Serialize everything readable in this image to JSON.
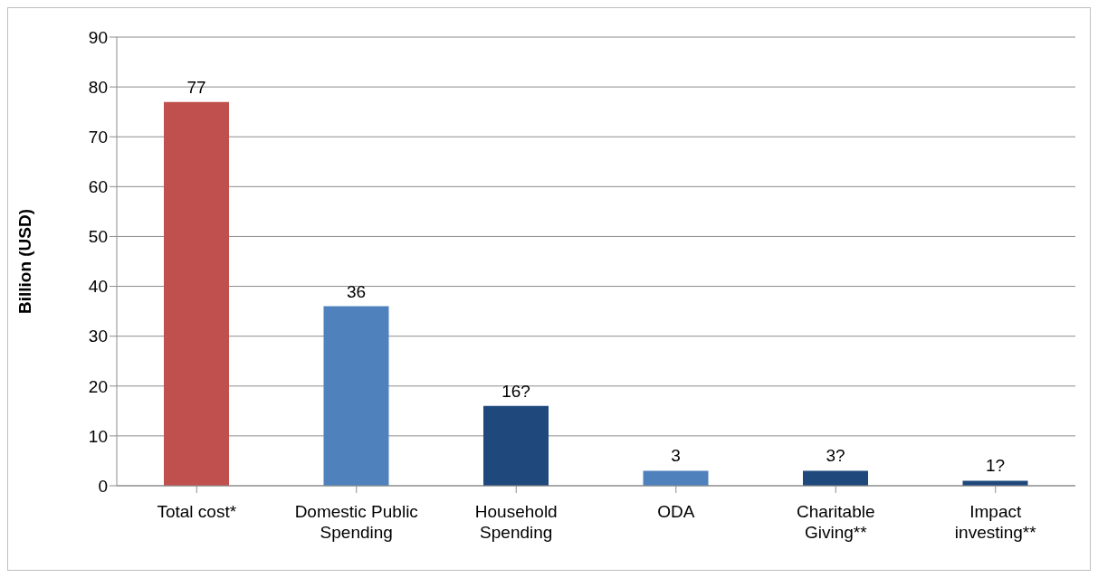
{
  "chart_data": {
    "type": "bar",
    "ylabel": "Billion (USD)",
    "categories": [
      "Total cost*",
      "Domestic Public Spending",
      "Household Spending",
      "ODA",
      "Charitable Giving**",
      "Impact investing**"
    ],
    "values": [
      77,
      36,
      16,
      3,
      3,
      1
    ],
    "colors": [
      "#c0504d",
      "#4f81bd",
      "#1f497d",
      "#4f81bd",
      "#1f497d",
      "#1f497d"
    ],
    "value_labels": [
      "77",
      "36",
      "16?",
      "3",
      "3?",
      "1?"
    ],
    "ylim": [
      0,
      90
    ],
    "yticks": [
      0,
      10,
      20,
      30,
      40,
      50,
      60,
      70,
      80,
      90
    ],
    "grid": "y",
    "legend": false
  }
}
